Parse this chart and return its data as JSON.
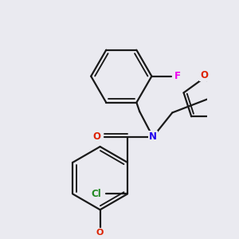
{
  "bg_color": "#eaeaf0",
  "bond_color": "#1a1a1a",
  "bond_width": 1.6,
  "atom_colors": {
    "F": "#ee00ee",
    "O": "#dd2200",
    "N": "#2200ee",
    "Cl": "#228822"
  },
  "font_size": 8.5,
  "fig_size": [
    3.0,
    3.0
  ],
  "dpi": 100
}
